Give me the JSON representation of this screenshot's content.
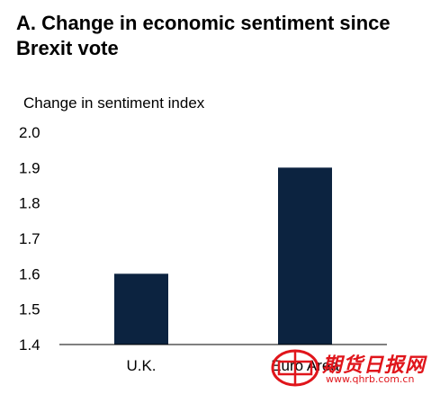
{
  "title": "A. Change in economic sentiment since Brexit vote",
  "chart_data": {
    "type": "bar",
    "ylabel": "Change in sentiment index",
    "xlabel": "",
    "categories": [
      "U.K.",
      "Euro Area"
    ],
    "values": [
      1.6,
      1.9
    ],
    "ylim": [
      1.4,
      2.0
    ],
    "yticks": [
      "2.0",
      "1.9",
      "1.8",
      "1.7",
      "1.6",
      "1.5",
      "1.4"
    ],
    "grid": false,
    "bar_color": "#0c2340"
  },
  "watermark": {
    "text": "期货日报网",
    "url": "www.qhrb.com.cn",
    "color": "#e0151b"
  }
}
